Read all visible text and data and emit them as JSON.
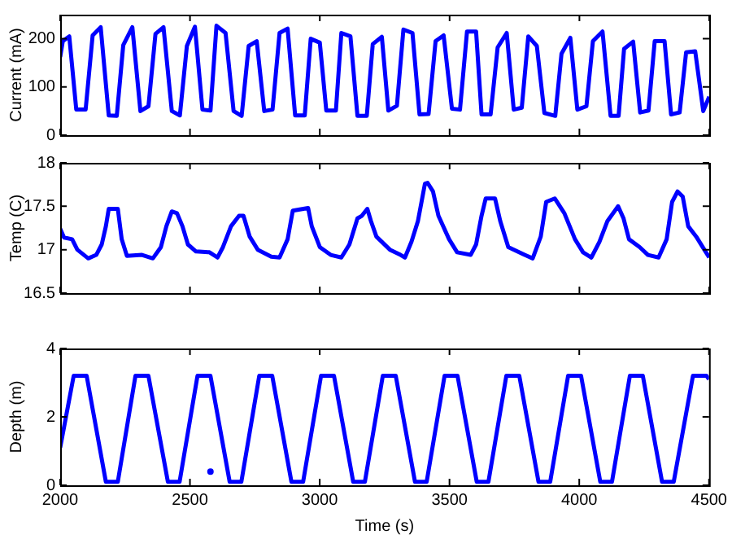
{
  "chart_data": [
    {
      "type": "line",
      "ylabel": "Current (mA)",
      "xlim": [
        2000,
        4500
      ],
      "xticks": [
        2000,
        2500,
        3000,
        3500,
        4000,
        4500
      ],
      "ylim": [
        0,
        250
      ],
      "yticks": [
        0,
        100,
        200
      ],
      "tick_labels": "y",
      "grid": false,
      "legend": false,
      "marker": "none",
      "line_style": "solid",
      "series": [
        {
          "color": "#0000ff",
          "x": [
            2000,
            2010,
            2035,
            2062,
            2098,
            2125,
            2156,
            2187,
            2218,
            2243,
            2278,
            2309,
            2340,
            2367,
            2398,
            2430,
            2461,
            2488,
            2519,
            2548,
            2579,
            2602,
            2637,
            2668,
            2699,
            2726,
            2757,
            2786,
            2818,
            2845,
            2876,
            2905,
            2942,
            2965,
            3000,
            3025,
            3062,
            3083,
            3118,
            3145,
            3181,
            3204,
            3239,
            3264,
            3297,
            3322,
            3357,
            3384,
            3419,
            3446,
            3477,
            3509,
            3540,
            3567,
            3602,
            3623,
            3658,
            3685,
            3720,
            3747,
            3778,
            3803,
            3836,
            3865,
            3907,
            3931,
            3965,
            3992,
            4027,
            4052,
            4089,
            4120,
            4151,
            4172,
            4207,
            4234,
            4266,
            4290,
            4328,
            4353,
            4386,
            4411,
            4446,
            4477,
            4500
          ],
          "values": [
            162,
            195,
            205,
            53,
            53,
            207,
            224,
            41,
            40,
            187,
            224,
            50,
            60,
            210,
            224,
            50,
            41,
            185,
            225,
            53,
            51,
            227,
            212,
            50,
            40,
            185,
            195,
            50,
            53,
            212,
            221,
            41,
            41,
            200,
            192,
            51,
            51,
            212,
            205,
            40,
            40,
            189,
            204,
            51,
            61,
            219,
            212,
            43,
            44,
            195,
            207,
            55,
            53,
            215,
            215,
            43,
            43,
            182,
            212,
            53,
            57,
            205,
            185,
            46,
            40,
            169,
            202,
            53,
            60,
            195,
            215,
            40,
            40,
            179,
            194,
            47,
            51,
            195,
            195,
            43,
            47,
            172,
            174,
            50,
            80
          ]
        }
      ]
    },
    {
      "type": "line",
      "ylabel": "Temp (C)",
      "xlim": [
        2000,
        4500
      ],
      "xticks": [
        2000,
        2500,
        3000,
        3500,
        4000,
        4500
      ],
      "ylim": [
        16.5,
        18
      ],
      "yticks": [
        16.5,
        17,
        17.5,
        18
      ],
      "tick_labels": "y",
      "grid": false,
      "legend": false,
      "marker": "none",
      "line_style": "solid",
      "series": [
        {
          "color": "#0000ff",
          "x": [
            2000,
            2015,
            2046,
            2066,
            2108,
            2139,
            2160,
            2176,
            2187,
            2222,
            2237,
            2257,
            2315,
            2357,
            2388,
            2409,
            2430,
            2450,
            2471,
            2492,
            2523,
            2575,
            2606,
            2627,
            2658,
            2689,
            2706,
            2730,
            2761,
            2813,
            2845,
            2876,
            2896,
            2955,
            2969,
            3000,
            3042,
            3083,
            3114,
            3145,
            3162,
            3183,
            3197,
            3218,
            3270,
            3311,
            3328,
            3353,
            3378,
            3405,
            3415,
            3436,
            3457,
            3498,
            3529,
            3581,
            3602,
            3623,
            3639,
            3675,
            3695,
            3726,
            3789,
            3820,
            3851,
            3872,
            3905,
            3942,
            3983,
            4014,
            4046,
            4077,
            4108,
            4149,
            4170,
            4191,
            4232,
            4264,
            4305,
            4336,
            4357,
            4378,
            4398,
            4419,
            4450,
            4481,
            4500
          ],
          "values": [
            17.24,
            17.14,
            17.12,
            17.0,
            16.9,
            16.94,
            17.06,
            17.27,
            17.47,
            17.47,
            17.12,
            16.93,
            16.94,
            16.9,
            17.03,
            17.27,
            17.44,
            17.42,
            17.27,
            17.06,
            16.98,
            16.97,
            16.91,
            17.03,
            17.27,
            17.39,
            17.39,
            17.15,
            17.0,
            16.92,
            16.91,
            17.12,
            17.45,
            17.48,
            17.27,
            17.03,
            16.94,
            16.91,
            17.06,
            17.36,
            17.39,
            17.47,
            17.33,
            17.15,
            17.0,
            16.94,
            16.91,
            17.09,
            17.33,
            17.76,
            17.77,
            17.67,
            17.39,
            17.12,
            16.97,
            16.94,
            17.06,
            17.39,
            17.59,
            17.59,
            17.33,
            17.03,
            16.94,
            16.9,
            17.15,
            17.55,
            17.59,
            17.42,
            17.12,
            16.97,
            16.91,
            17.09,
            17.33,
            17.5,
            17.36,
            17.12,
            17.03,
            16.94,
            16.91,
            17.12,
            17.55,
            17.67,
            17.61,
            17.27,
            17.15,
            17.0,
            16.91
          ]
        }
      ]
    },
    {
      "type": "line",
      "xlabel": "Time (s)",
      "ylabel": "Depth (m)",
      "xlim": [
        2000,
        4500
      ],
      "xticks": [
        2000,
        2500,
        3000,
        3500,
        4000,
        4500
      ],
      "ylim": [
        0,
        4
      ],
      "yticks": [
        0,
        2,
        4
      ],
      "grid": false,
      "legend": false,
      "marker": "none",
      "line_style": "solid",
      "series": [
        {
          "color": "#0000ff",
          "x": [
            2000,
            2052,
            2102,
            2176,
            2222,
            2290,
            2340,
            2415,
            2460,
            2529,
            2579,
            2653,
            2698,
            2767,
            2817,
            2891,
            2936,
            3005,
            3055,
            3129,
            3174,
            3243,
            3293,
            3367,
            3412,
            3481,
            3531,
            3605,
            3650,
            3719,
            3769,
            3843,
            3888,
            3957,
            4007,
            4081,
            4126,
            4195,
            4245,
            4319,
            4364,
            4438,
            4490,
            4500
          ],
          "values": [
            1.1,
            3.2,
            3.2,
            0.1,
            0.1,
            3.2,
            3.2,
            0.1,
            0.1,
            3.2,
            3.2,
            0.1,
            0.1,
            3.2,
            3.2,
            0.1,
            0.1,
            3.2,
            3.2,
            0.1,
            0.1,
            3.2,
            3.2,
            0.1,
            0.1,
            3.2,
            3.2,
            0.1,
            0.1,
            3.2,
            3.2,
            0.1,
            0.1,
            3.2,
            3.2,
            0.1,
            0.1,
            3.2,
            3.2,
            0.1,
            0.1,
            3.2,
            3.2,
            3.1
          ]
        },
        {
          "type": "scatter",
          "marker": "circle",
          "color": "#0000ff",
          "x": [
            2579
          ],
          "values": [
            0.4
          ]
        }
      ]
    }
  ]
}
